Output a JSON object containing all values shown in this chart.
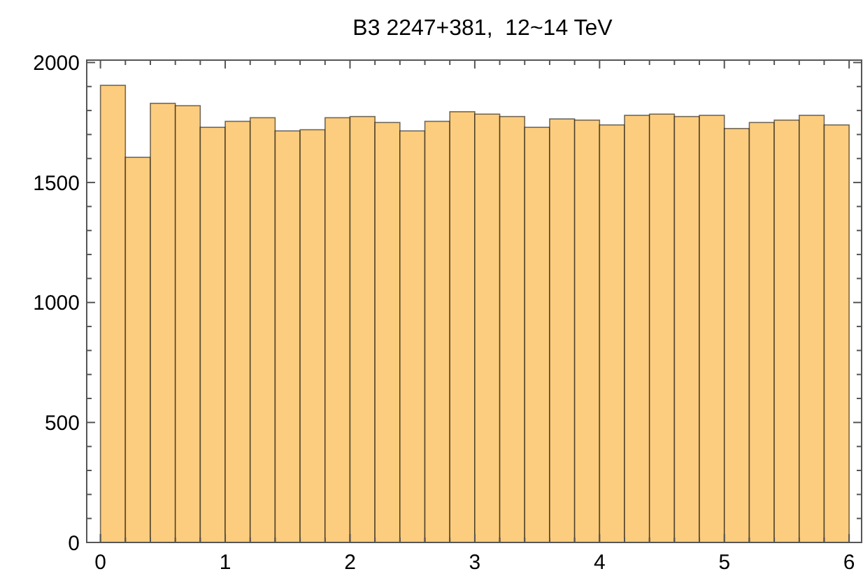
{
  "chart_data": {
    "type": "histogram",
    "title": "B3 2247+381,  12~14 TeV",
    "bins": [
      0,
      0.2,
      0.4,
      0.6,
      0.8,
      1,
      1.2,
      1.4,
      1.6,
      1.8,
      2,
      2.2,
      2.4,
      2.6,
      2.8,
      3,
      3.2,
      3.4,
      3.6,
      3.8,
      4,
      4.2,
      4.4,
      4.6,
      4.8,
      5,
      5.2,
      5.4,
      5.6,
      5.8,
      6
    ],
    "values": [
      1905,
      1605,
      1830,
      1820,
      1730,
      1755,
      1770,
      1715,
      1720,
      1770,
      1775,
      1750,
      1715,
      1755,
      1795,
      1785,
      1775,
      1730,
      1765,
      1760,
      1740,
      1780,
      1785,
      1775,
      1780,
      1725,
      1750,
      1760,
      1780,
      1740
    ],
    "color": "#fccd7e",
    "xlim": [
      -0.11,
      6.1
    ],
    "ylim": [
      0,
      2010
    ],
    "xticks": [
      0,
      {
        "value": 0.2,
        "label": null
      },
      {
        "value": 0.4,
        "label": null
      },
      {
        "value": 0.6,
        "label": null
      },
      {
        "value": 0.8,
        "label": null
      },
      1,
      {
        "value": 1.2,
        "label": null
      },
      {
        "value": 1.4,
        "label": null
      },
      {
        "value": 1.6,
        "label": null
      },
      {
        "value": 1.8,
        "label": null
      },
      2,
      {
        "value": 2.2,
        "label": null
      },
      {
        "value": 2.4,
        "label": null
      },
      {
        "value": 2.6,
        "label": null
      },
      {
        "value": 2.8,
        "label": null
      },
      3,
      {
        "value": 3.2,
        "label": null
      },
      {
        "value": 3.4,
        "label": null
      },
      {
        "value": 3.6,
        "label": null
      },
      {
        "value": 3.8,
        "label": null
      },
      4,
      {
        "value": 4.2,
        "label": null
      },
      {
        "value": 4.4,
        "label": null
      },
      {
        "value": 4.6,
        "label": null
      },
      {
        "value": 4.8,
        "label": null
      },
      5,
      {
        "value": 5.2,
        "label": null
      },
      {
        "value": 5.4,
        "label": null
      },
      {
        "value": 5.6,
        "label": null
      },
      {
        "value": 5.8,
        "label": null
      },
      6
    ],
    "yticks": [
      0,
      {
        "value": 100,
        "label": null
      },
      {
        "value": 200,
        "label": null
      },
      {
        "value": 300,
        "label": null
      },
      {
        "value": 400,
        "label": null
      },
      500,
      {
        "value": 600,
        "label": null
      },
      {
        "value": 700,
        "label": null
      },
      {
        "value": 800,
        "label": null
      },
      {
        "value": 900,
        "label": null
      },
      1000,
      {
        "value": 1100,
        "label": null
      },
      {
        "value": 1200,
        "label": null
      },
      {
        "value": 1300,
        "label": null
      },
      {
        "value": 1400,
        "label": null
      },
      1500,
      {
        "value": 1600,
        "label": null
      },
      {
        "value": 1700,
        "label": null
      },
      {
        "value": 1800,
        "label": null
      },
      {
        "value": 1900,
        "label": null
      },
      2000
    ]
  }
}
